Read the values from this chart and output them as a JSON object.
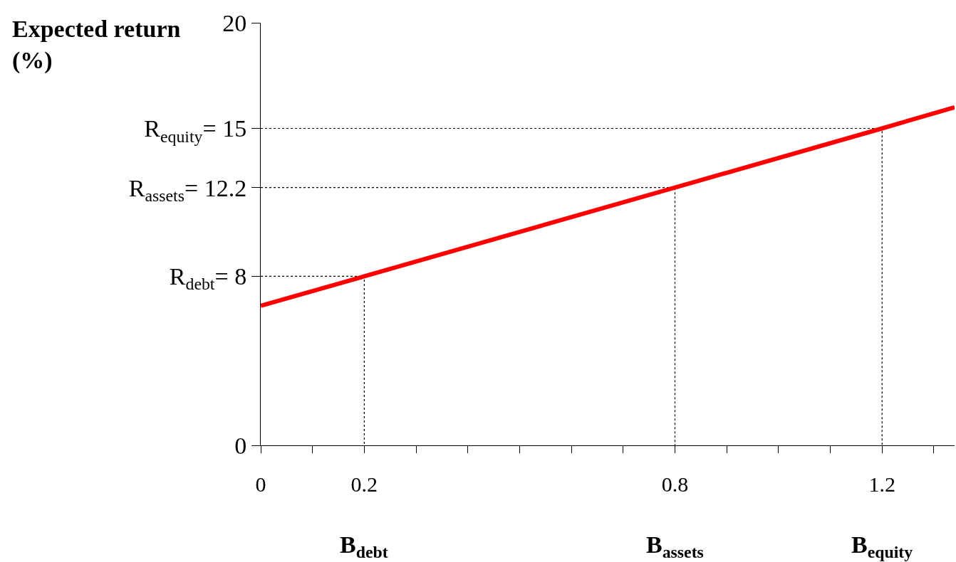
{
  "chart_data": {
    "type": "line",
    "ylabel": "Expected return (%)",
    "xlim": [
      0,
      1.34
    ],
    "xticks": [
      0,
      {
        "value": 0.1,
        "label": null
      },
      0.2,
      {
        "value": 0.3,
        "label": null
      },
      {
        "value": 0.4,
        "label": null
      },
      {
        "value": 0.5,
        "label": null
      },
      {
        "value": 0.6,
        "label": null
      },
      {
        "value": 0.7,
        "label": null
      },
      0.8,
      {
        "value": 0.9,
        "label": null
      },
      {
        "value": 1.0,
        "label": null
      },
      {
        "value": 1.1,
        "label": null
      },
      1.2,
      {
        "value": 1.3,
        "label": null
      }
    ],
    "ylim": [
      0,
      20
    ],
    "yticks": [
      0,
      {
        "value": 8,
        "label": "R$_{debt}$= 8"
      },
      {
        "value": 12.2,
        "label": "R$_{assets}$= 12.2"
      },
      {
        "value": 15,
        "label": "R$_{equity}$= 15"
      },
      20
    ],
    "grid": false,
    "marker": "none",
    "series": [
      {
        "color": "#ff0000",
        "x": [
          0,
          0.2,
          0.8,
          1.2,
          1.34
        ],
        "values": [
          6.6,
          8,
          12.2,
          15,
          16
        ],
        "line_style": "solid"
      },
      {
        "color": "#000000",
        "x": [
          0,
          0.2,
          0.2
        ],
        "values": [
          8,
          8,
          0
        ],
        "line_style": "dotted"
      },
      {
        "color": "#000000",
        "x": [
          0,
          0.8,
          0.8
        ],
        "values": [
          12.2,
          12.2,
          0
        ],
        "line_style": "dotted"
      },
      {
        "color": "#000000",
        "x": [
          0,
          1.2,
          1.2
        ],
        "values": [
          15,
          15,
          0
        ],
        "line_style": "dotted"
      }
    ],
    "annotations": [
      "B$_{debt}$",
      "B$_{assets}$",
      "B$_{equity}$"
    ]
  }
}
